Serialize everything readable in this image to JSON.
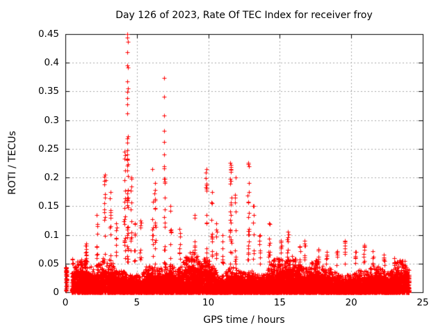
{
  "chart_data": {
    "type": "scatter",
    "title": "Day 126 of 2023, Rate Of TEC Index for receiver froy",
    "xlabel": "GPS time / hours",
    "ylabel": "ROTI / TECUs",
    "xlim": [
      0,
      25
    ],
    "ylim": [
      0,
      0.45
    ],
    "xticks": [
      {
        "value": 0,
        "label": "0"
      },
      {
        "value": 5,
        "label": "5"
      },
      {
        "value": 10,
        "label": "10"
      },
      {
        "value": 15,
        "label": "15"
      },
      {
        "value": 20,
        "label": "20"
      },
      {
        "value": 25,
        "label": "25"
      }
    ],
    "yticks": [
      {
        "value": 0,
        "label": "0"
      },
      {
        "value": 0.05,
        "label": "0.05"
      },
      {
        "value": 0.1,
        "label": "0.1"
      },
      {
        "value": 0.15,
        "label": "0.15"
      },
      {
        "value": 0.2,
        "label": "0.2"
      },
      {
        "value": 0.25,
        "label": "0.25"
      },
      {
        "value": 0.3,
        "label": "0.3"
      },
      {
        "value": 0.35,
        "label": "0.35"
      },
      {
        "value": 0.4,
        "label": "0.4"
      },
      {
        "value": 0.45,
        "label": "0.45"
      }
    ],
    "grid": {
      "on": true,
      "color": "#a8a8a8",
      "dash": [
        2,
        3
      ]
    },
    "marker": {
      "shape": "plus",
      "size": 7,
      "color": "#ff0000"
    },
    "border_color": "#000000",
    "background": "#ffffff",
    "series_name": "ROTI",
    "start_cluster": {
      "t": 0.07,
      "w": 0.05,
      "n": 40,
      "y_min": 0.002,
      "y_max": 0.044
    },
    "baseline": {
      "t_start": 0.45,
      "t_end": 24.05,
      "n": 12000,
      "base": 0.03,
      "waves": [
        [
          0.009,
          0.85,
          0.4
        ],
        [
          0.006,
          2.1,
          1.2
        ],
        [
          0.004,
          4.3,
          2.0
        ]
      ],
      "decay_after": 14,
      "decay": 0.15,
      "pow": 1.7,
      "fuzz_prob": 0.08,
      "fuzz_max": 0.55,
      "min_band": 0.02
    },
    "spikes": [
      {
        "t": 1.45,
        "peak": 0.085,
        "n": 12,
        "w": 0.07
      },
      {
        "t": 2.2,
        "peak": 0.135,
        "n": 9,
        "w": 0.06
      },
      {
        "t": 2.75,
        "peak": 0.205,
        "n": 14,
        "w": 0.05
      },
      {
        "t": 3.15,
        "peak": 0.175,
        "n": 12,
        "w": 0.06
      },
      {
        "t": 3.55,
        "peak": 0.12,
        "n": 8,
        "w": 0.06
      },
      {
        "t": 4.15,
        "peak": 0.245,
        "n": 20,
        "w": 0.06
      },
      {
        "t": 4.35,
        "peak": 0.24,
        "n": 30,
        "w": 0.05
      },
      {
        "t": 4.6,
        "peak": 0.2,
        "n": 14,
        "w": 0.05
      },
      {
        "t": 4.85,
        "peak": 0.12,
        "n": 8,
        "w": 0.05
      },
      {
        "t": 5.25,
        "peak": 0.125,
        "n": 9,
        "w": 0.05
      },
      {
        "t": 6.1,
        "peak": 0.215,
        "n": 10,
        "w": 0.04
      },
      {
        "t": 6.27,
        "peak": 0.19,
        "n": 14,
        "w": 0.05
      },
      {
        "t": 6.93,
        "peak": 0.22,
        "n": 16,
        "w": 0.04
      },
      {
        "t": 7.35,
        "peak": 0.15,
        "n": 9,
        "w": 0.05
      },
      {
        "t": 8.0,
        "peak": 0.11,
        "n": 9,
        "w": 0.06
      },
      {
        "t": 9.05,
        "peak": 0.135,
        "n": 10,
        "w": 0.06
      },
      {
        "t": 9.85,
        "peak": 0.215,
        "n": 16,
        "w": 0.05
      },
      {
        "t": 10.25,
        "peak": 0.175,
        "n": 12,
        "w": 0.05
      },
      {
        "t": 10.55,
        "peak": 0.12,
        "n": 8,
        "w": 0.05
      },
      {
        "t": 11.0,
        "peak": 0.1,
        "n": 8,
        "w": 0.05
      },
      {
        "t": 11.55,
        "peak": 0.225,
        "n": 26,
        "w": 0.07
      },
      {
        "t": 11.9,
        "peak": 0.2,
        "n": 12,
        "w": 0.05
      },
      {
        "t": 12.8,
        "peak": 0.225,
        "n": 24,
        "w": 0.06
      },
      {
        "t": 13.15,
        "peak": 0.15,
        "n": 9,
        "w": 0.05
      },
      {
        "t": 13.6,
        "peak": 0.1,
        "n": 8,
        "w": 0.05
      },
      {
        "t": 14.25,
        "peak": 0.12,
        "n": 11,
        "w": 0.06
      },
      {
        "t": 15.1,
        "peak": 0.09,
        "n": 8,
        "w": 0.05
      },
      {
        "t": 15.55,
        "peak": 0.105,
        "n": 10,
        "w": 0.05
      },
      {
        "t": 16.4,
        "peak": 0.08,
        "n": 7,
        "w": 0.06
      },
      {
        "t": 16.75,
        "peak": 0.09,
        "n": 7,
        "w": 0.05
      },
      {
        "t": 17.7,
        "peak": 0.075,
        "n": 6,
        "w": 0.05
      },
      {
        "t": 18.3,
        "peak": 0.07,
        "n": 6,
        "w": 0.05
      },
      {
        "t": 19.0,
        "peak": 0.072,
        "n": 6,
        "w": 0.05
      },
      {
        "t": 19.55,
        "peak": 0.09,
        "n": 9,
        "w": 0.05
      },
      {
        "t": 20.3,
        "peak": 0.07,
        "n": 6,
        "w": 0.05
      },
      {
        "t": 20.9,
        "peak": 0.082,
        "n": 8,
        "w": 0.05
      },
      {
        "t": 21.5,
        "peak": 0.072,
        "n": 6,
        "w": 0.05
      },
      {
        "t": 22.3,
        "peak": 0.065,
        "n": 6,
        "w": 0.05
      },
      {
        "t": 23.0,
        "peak": 0.06,
        "n": 6,
        "w": 0.05
      },
      {
        "t": 23.55,
        "peak": 0.055,
        "n": 6,
        "w": 0.05
      }
    ],
    "outlier_points": [
      [
        4.33,
        0.45
      ],
      [
        4.35,
        0.444
      ],
      [
        4.36,
        0.437
      ],
      [
        4.35,
        0.419
      ],
      [
        4.34,
        0.396
      ],
      [
        4.36,
        0.392
      ],
      [
        4.35,
        0.368
      ],
      [
        4.36,
        0.355
      ],
      [
        4.33,
        0.349
      ],
      [
        4.35,
        0.338
      ],
      [
        4.34,
        0.328
      ],
      [
        4.34,
        0.312
      ],
      [
        4.36,
        0.272
      ],
      [
        4.33,
        0.268
      ],
      [
        4.35,
        0.261
      ],
      [
        4.34,
        0.247
      ],
      [
        6.9,
        0.373
      ],
      [
        6.92,
        0.341
      ],
      [
        6.91,
        0.308
      ],
      [
        6.93,
        0.281
      ],
      [
        6.9,
        0.262
      ],
      [
        6.92,
        0.24
      ]
    ]
  }
}
